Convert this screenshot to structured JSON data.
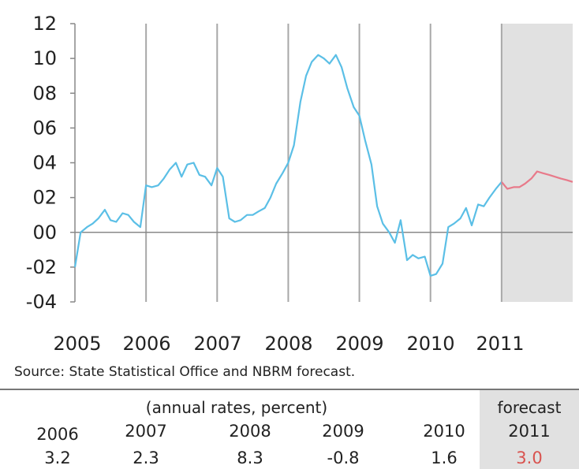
{
  "chart_data": {
    "type": "line",
    "y_ticks": [
      "12",
      "10",
      "08",
      "06",
      "04",
      "02",
      "00",
      "-02",
      "-04"
    ],
    "ylim": [
      -4,
      12
    ],
    "x_ticks": [
      "2005",
      "2006",
      "2007",
      "2008",
      "2009",
      "2010",
      "2011"
    ],
    "xlim": [
      2005,
      2012
    ],
    "grid": "vertical lines at year boundaries",
    "forecast_shaded_from": 2011,
    "colors": {
      "actual": "#5bbfe6",
      "forecast": "#e87a8a",
      "shade": "#e1e1e1",
      "axis": "#888888"
    },
    "series": [
      {
        "values": [
          [
            2005.0,
            -2.0
          ],
          [
            2005.08,
            0.0
          ],
          [
            2005.17,
            0.3
          ],
          [
            2005.25,
            0.5
          ],
          [
            2005.33,
            0.8
          ],
          [
            2005.42,
            1.3
          ],
          [
            2005.5,
            0.7
          ],
          [
            2005.58,
            0.6
          ],
          [
            2005.67,
            1.1
          ],
          [
            2005.75,
            1.0
          ],
          [
            2005.83,
            0.6
          ],
          [
            2005.92,
            0.3
          ],
          [
            2006.0,
            2.7
          ],
          [
            2006.08,
            2.6
          ],
          [
            2006.17,
            2.7
          ],
          [
            2006.25,
            3.1
          ],
          [
            2006.33,
            3.6
          ],
          [
            2006.42,
            4.0
          ],
          [
            2006.5,
            3.2
          ],
          [
            2006.58,
            3.9
          ],
          [
            2006.67,
            4.0
          ],
          [
            2006.75,
            3.3
          ],
          [
            2006.83,
            3.2
          ],
          [
            2006.92,
            2.7
          ],
          [
            2007.0,
            3.7
          ],
          [
            2007.08,
            3.2
          ],
          [
            2007.17,
            0.8
          ],
          [
            2007.25,
            0.6
          ],
          [
            2007.33,
            0.7
          ],
          [
            2007.42,
            1.0
          ],
          [
            2007.5,
            1.0
          ],
          [
            2007.58,
            1.2
          ],
          [
            2007.67,
            1.4
          ],
          [
            2007.75,
            2.0
          ],
          [
            2007.83,
            2.8
          ],
          [
            2007.92,
            3.4
          ],
          [
            2008.0,
            4.0
          ],
          [
            2008.08,
            5.0
          ],
          [
            2008.17,
            7.5
          ],
          [
            2008.25,
            9.0
          ],
          [
            2008.33,
            9.8
          ],
          [
            2008.42,
            10.2
          ],
          [
            2008.5,
            10.0
          ],
          [
            2008.58,
            9.7
          ],
          [
            2008.67,
            10.2
          ],
          [
            2008.75,
            9.5
          ],
          [
            2008.83,
            8.3
          ],
          [
            2008.92,
            7.2
          ],
          [
            2009.0,
            6.7
          ],
          [
            2009.08,
            5.3
          ],
          [
            2009.17,
            3.9
          ],
          [
            2009.25,
            1.5
          ],
          [
            2009.33,
            0.5
          ],
          [
            2009.42,
            0.0
          ],
          [
            2009.5,
            -0.6
          ],
          [
            2009.58,
            0.7
          ],
          [
            2009.67,
            -1.6
          ],
          [
            2009.75,
            -1.3
          ],
          [
            2009.83,
            -1.5
          ],
          [
            2009.92,
            -1.4
          ],
          [
            2010.0,
            -2.5
          ],
          [
            2010.08,
            -2.4
          ],
          [
            2010.17,
            -1.8
          ],
          [
            2010.25,
            0.3
          ],
          [
            2010.33,
            0.5
          ],
          [
            2010.42,
            0.8
          ],
          [
            2010.5,
            1.4
          ],
          [
            2010.58,
            0.4
          ],
          [
            2010.67,
            1.6
          ],
          [
            2010.75,
            1.5
          ],
          [
            2010.83,
            2.0
          ],
          [
            2010.92,
            2.5
          ],
          [
            2011.0,
            2.9
          ]
        ]
      },
      {
        "values": [
          [
            2011.0,
            2.9
          ],
          [
            2011.08,
            2.5
          ],
          [
            2011.17,
            2.6
          ],
          [
            2011.25,
            2.6
          ],
          [
            2011.33,
            2.8
          ],
          [
            2011.42,
            3.1
          ],
          [
            2011.5,
            3.5
          ],
          [
            2011.58,
            3.4
          ],
          [
            2011.67,
            3.3
          ],
          [
            2011.75,
            3.2
          ],
          [
            2011.83,
            3.1
          ],
          [
            2011.92,
            3.0
          ],
          [
            2012.0,
            2.9
          ]
        ]
      }
    ]
  },
  "source": "Source: State Statistical Office and NBRM forecast.",
  "table": {
    "subtitle": "(annual rates, percent)",
    "forecast_label": "forecast",
    "years": [
      "2006",
      "2007",
      "2008",
      "2009",
      "2010",
      "2011"
    ],
    "values": [
      "3.2",
      "2.3",
      "8.3",
      "-0.8",
      "1.6",
      "3.0"
    ],
    "forecast_value_color": "#d9534f"
  }
}
